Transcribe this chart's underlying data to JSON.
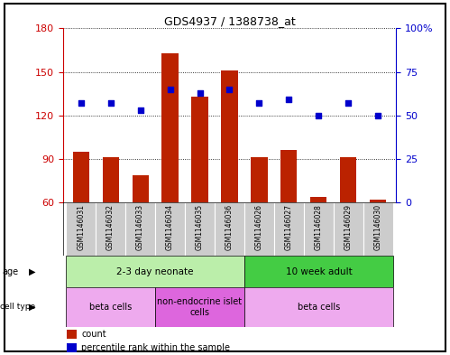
{
  "title": "GDS4937 / 1388738_at",
  "samples": [
    "GSM1146031",
    "GSM1146032",
    "GSM1146033",
    "GSM1146034",
    "GSM1146035",
    "GSM1146036",
    "GSM1146026",
    "GSM1146027",
    "GSM1146028",
    "GSM1146029",
    "GSM1146030"
  ],
  "counts": [
    95,
    91,
    79,
    163,
    133,
    151,
    91,
    96,
    64,
    91,
    62
  ],
  "percentiles": [
    57,
    57,
    53,
    65,
    63,
    65,
    57,
    59,
    50,
    57,
    50
  ],
  "ylim_left": [
    60,
    180
  ],
  "ylim_right": [
    0,
    100
  ],
  "yticks_left": [
    60,
    90,
    120,
    150,
    180
  ],
  "yticks_right": [
    0,
    25,
    50,
    75,
    100
  ],
  "ytick_labels_right": [
    "0",
    "25",
    "50",
    "75",
    "100%"
  ],
  "bar_color": "#bb2200",
  "dot_color": "#0000cc",
  "age_groups": [
    {
      "label": "2-3 day neonate",
      "start": 0,
      "end": 6,
      "color": "#bbeeaa"
    },
    {
      "label": "10 week adult",
      "start": 6,
      "end": 11,
      "color": "#44cc44"
    }
  ],
  "cell_type_groups": [
    {
      "label": "beta cells",
      "start": 0,
      "end": 3,
      "color": "#eeaaee"
    },
    {
      "label": "non-endocrine islet\ncells",
      "start": 3,
      "end": 6,
      "color": "#dd66dd"
    },
    {
      "label": "beta cells",
      "start": 6,
      "end": 11,
      "color": "#eeaaee"
    }
  ],
  "background_color": "#ffffff",
  "tick_color_left": "#cc0000",
  "tick_color_right": "#0000cc",
  "sample_bg": "#cccccc",
  "border_color": "#000000"
}
